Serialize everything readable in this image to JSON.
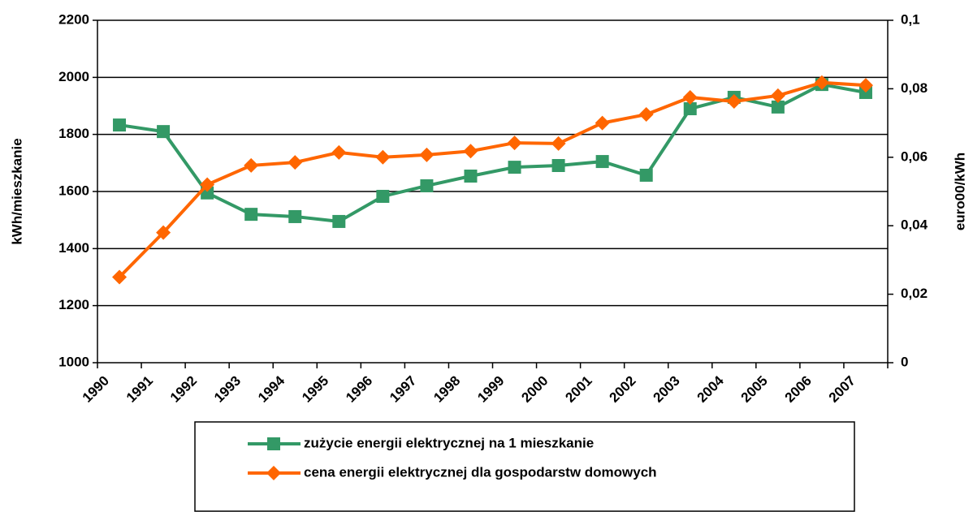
{
  "chart_data": {
    "type": "line",
    "y_label": "kWh/mieszkanie",
    "y2_label": "euro00/kWh",
    "categories": [
      "1990",
      "1991",
      "1992",
      "1993",
      "1994",
      "1995",
      "1996",
      "1997",
      "1998",
      "1999",
      "2000",
      "2001",
      "2002",
      "2003",
      "2004",
      "2005",
      "2006",
      "2007"
    ],
    "series": [
      {
        "name": "zużycie energii elektrycznej na 1 mieszkanie",
        "color": "#339966",
        "marker": "square",
        "values": [
          1833,
          1810,
          1595,
          1520,
          1512,
          1495,
          1583,
          1620,
          1654,
          1685,
          1691,
          1705,
          1657,
          1890,
          1930,
          1896,
          1975,
          1947
        ]
      },
      {
        "name": "cena energii elektrycznej dla gospodarstw domowych",
        "color": "#ff6600",
        "marker": "diamond",
        "axis": "y2",
        "values": [
          0.025,
          0.038,
          0.052,
          0.0576,
          0.0585,
          0.0614,
          0.06,
          0.0607,
          0.0618,
          0.0642,
          0.064,
          0.07,
          0.0725,
          0.0775,
          0.0763,
          0.078,
          0.0818,
          0.081
        ]
      }
    ],
    "ylim": [
      1000,
      2200
    ],
    "yticks": [
      1000,
      1200,
      1400,
      1600,
      1800,
      2000,
      2200
    ],
    "y2lim": [
      0,
      0.1
    ],
    "y2ticks": [
      0,
      {
        "value": 0.02,
        "label": "0,02"
      },
      {
        "value": 0.04,
        "label": "0,04"
      },
      {
        "value": 0.06,
        "label": "0,06"
      },
      {
        "value": 0.08,
        "label": "0,08"
      },
      {
        "value": 0.1,
        "label": "0,1"
      }
    ],
    "grid": true,
    "legend": "bottom"
  }
}
